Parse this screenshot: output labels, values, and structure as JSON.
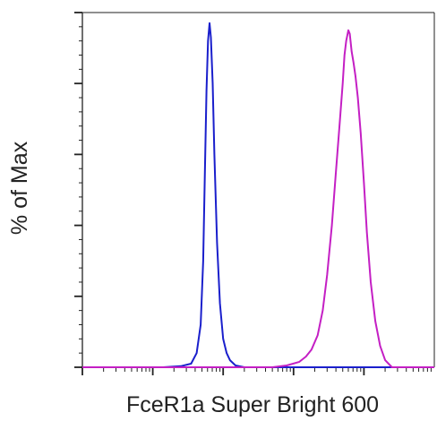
{
  "chart_data": {
    "type": "line",
    "title": "",
    "xlabel": "FceR1a Super Bright 600",
    "ylabel": "% of Max",
    "x_scale": "log",
    "xlim": [
      1,
      100000
    ],
    "ylim": [
      0,
      100
    ],
    "grid": false,
    "legend": "none",
    "series": [
      {
        "color": "#1a1fcc",
        "x": [
          14,
          25,
          35,
          42,
          48,
          52,
          55,
          58,
          61,
          64,
          67,
          71,
          75,
          82,
          90,
          100,
          112,
          125,
          150,
          200
        ],
        "y": [
          0,
          0.3,
          1,
          4,
          12,
          30,
          55,
          78,
          92,
          97,
          93,
          80,
          60,
          35,
          18,
          8,
          4,
          2,
          0.5,
          0
        ]
      },
      {
        "color": "#c41fc4",
        "x": [
          500,
          800,
          1200,
          1500,
          1800,
          2200,
          2600,
          3000,
          3500,
          4000,
          4500,
          5000,
          5300,
          5600,
          6000,
          6300,
          6700,
          7100,
          7600,
          8200,
          9000,
          10000,
          11000,
          12500,
          14500,
          17000,
          20000,
          25000
        ],
        "y": [
          0,
          0.5,
          1.5,
          3,
          5,
          9,
          16,
          26,
          40,
          55,
          68,
          80,
          88,
          92,
          95,
          94,
          89,
          86,
          82,
          76,
          66,
          52,
          38,
          24,
          13,
          6,
          2,
          0
        ]
      }
    ]
  }
}
